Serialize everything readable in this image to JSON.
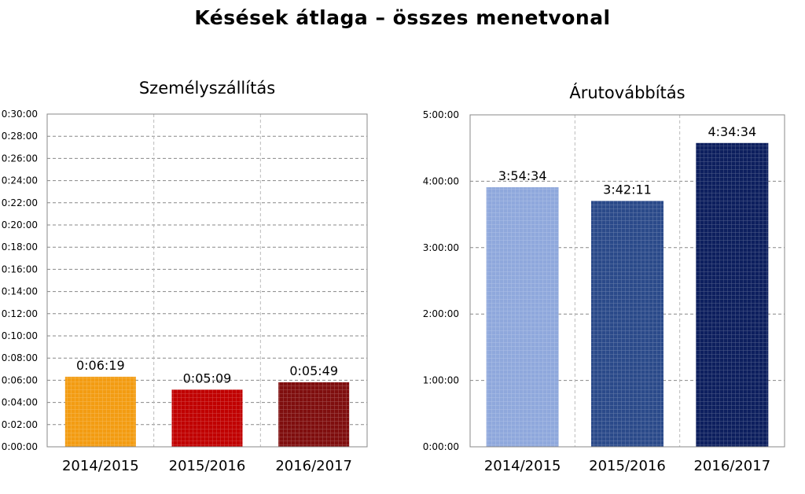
{
  "page_title": "Késések átlaga – összes menetvonal",
  "chart_data": [
    {
      "type": "bar",
      "title": "Személyszállítás",
      "categories": [
        "2014/2015",
        "2015/2016",
        "2016/2017"
      ],
      "values": [
        "0:06:19",
        "0:05:09",
        "0:05:49"
      ],
      "value_labels": [
        "0:06:19",
        "0:05:09",
        "0:05:49"
      ],
      "ylim": [
        "0:00:00",
        "0:30:00"
      ],
      "yticks": [
        "0:00:00",
        "0:02:00",
        "0:04:00",
        "0:06:00",
        "0:08:00",
        "0:10:00",
        "0:12:00",
        "0:14:00",
        "0:16:00",
        "0:18:00",
        "0:20:00",
        "0:22:00",
        "0:24:00",
        "0:26:00",
        "0:28:00",
        "0:30:00"
      ],
      "grid": true,
      "colors": [
        "#f39c12",
        "#c00000",
        "#7f0e0e"
      ]
    },
    {
      "type": "bar",
      "title": "Árutovábbítás",
      "categories": [
        "2014/2015",
        "2015/2016",
        "2016/2017"
      ],
      "values": [
        "3:54:34",
        "3:42:11",
        "4:34:34"
      ],
      "value_labels": [
        "3:54:34",
        "3:42:11",
        "4:34:34"
      ],
      "ylim": [
        "0:00:00",
        "5:00:00"
      ],
      "yticks": [
        "0:00:00",
        "1:00:00",
        "2:00:00",
        "3:00:00",
        "4:00:00",
        "5:00:00"
      ],
      "grid": true,
      "colors": [
        "#8fa8dc",
        "#2b4a8a",
        "#0d1f5e"
      ]
    }
  ]
}
